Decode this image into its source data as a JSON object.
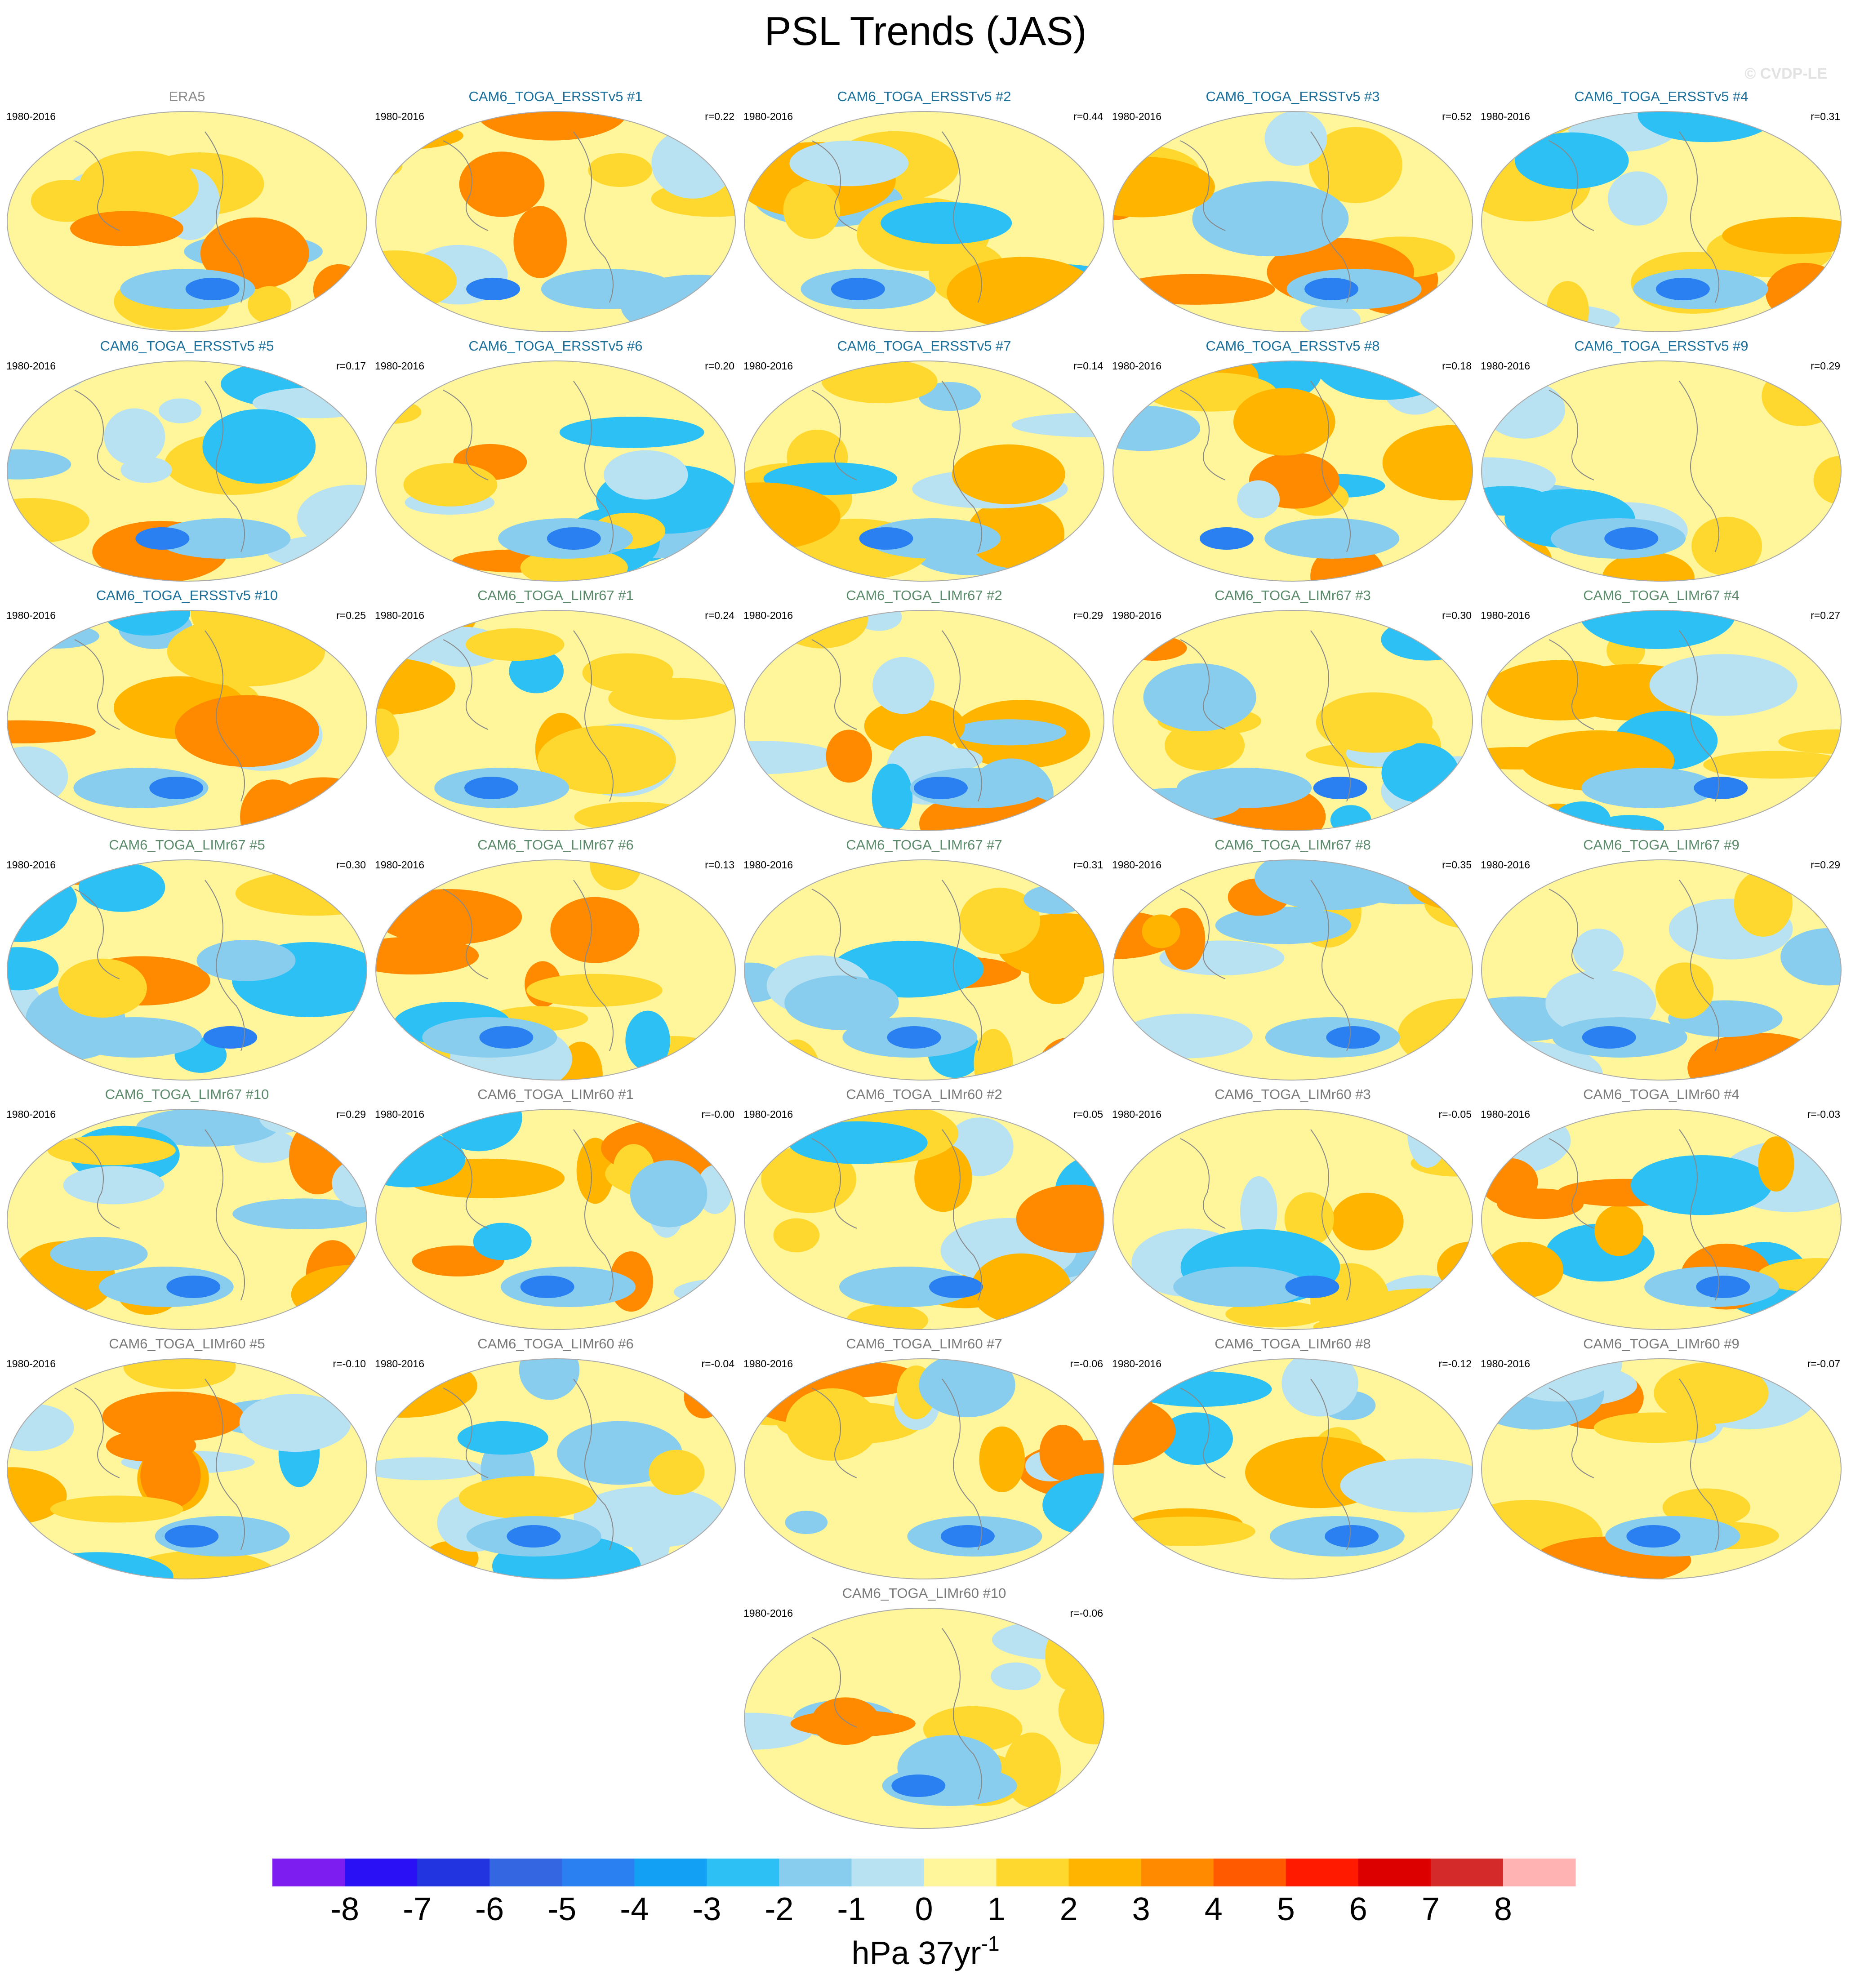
{
  "title": "PSL Trends (JAS)",
  "watermark": "© CVDP-LE",
  "panels": [
    {
      "title": "ERA5",
      "period": "1980-2016",
      "color": "#8a8a8a"
    },
    {
      "title": "CAM6_TOGA_ERSSTv5 #1",
      "period": "1980-2016",
      "r": "r=0.22",
      "color": "#1b6f9b"
    },
    {
      "title": "CAM6_TOGA_ERSSTv5 #2",
      "period": "1980-2016",
      "r": "r=0.44",
      "color": "#1b6f9b"
    },
    {
      "title": "CAM6_TOGA_ERSSTv5 #3",
      "period": "1980-2016",
      "r": "r=0.52",
      "color": "#1b6f9b"
    },
    {
      "title": "CAM6_TOGA_ERSSTv5 #4",
      "period": "1980-2016",
      "r": "r=0.31",
      "color": "#1b6f9b"
    },
    {
      "title": "CAM6_TOGA_ERSSTv5 #5",
      "period": "1980-2016",
      "r": "r=0.17",
      "color": "#1b6f9b"
    },
    {
      "title": "CAM6_TOGA_ERSSTv5 #6",
      "period": "1980-2016",
      "r": "r=0.20",
      "color": "#1b6f9b"
    },
    {
      "title": "CAM6_TOGA_ERSSTv5 #7",
      "period": "1980-2016",
      "r": "r=0.14",
      "color": "#1b6f9b"
    },
    {
      "title": "CAM6_TOGA_ERSSTv5 #8",
      "period": "1980-2016",
      "r": "r=0.18",
      "color": "#1b6f9b"
    },
    {
      "title": "CAM6_TOGA_ERSSTv5 #9",
      "period": "1980-2016",
      "r": "r=0.29",
      "color": "#1b6f9b"
    },
    {
      "title": "CAM6_TOGA_ERSSTv5 #10",
      "period": "1980-2016",
      "r": "r=0.25",
      "color": "#1b6f9b"
    },
    {
      "title": "CAM6_TOGA_LIMr67 #1",
      "period": "1980-2016",
      "r": "r=0.24",
      "color": "#5b8a6b"
    },
    {
      "title": "CAM6_TOGA_LIMr67 #2",
      "period": "1980-2016",
      "r": "r=0.29",
      "color": "#5b8a6b"
    },
    {
      "title": "CAM6_TOGA_LIMr67 #3",
      "period": "1980-2016",
      "r": "r=0.30",
      "color": "#5b8a6b"
    },
    {
      "title": "CAM6_TOGA_LIMr67 #4",
      "period": "1980-2016",
      "r": "r=0.27",
      "color": "#5b8a6b"
    },
    {
      "title": "CAM6_TOGA_LIMr67 #5",
      "period": "1980-2016",
      "r": "r=0.30",
      "color": "#5b8a6b"
    },
    {
      "title": "CAM6_TOGA_LIMr67 #6",
      "period": "1980-2016",
      "r": "r=0.13",
      "color": "#5b8a6b"
    },
    {
      "title": "CAM6_TOGA_LIMr67 #7",
      "period": "1980-2016",
      "r": "r=0.31",
      "color": "#5b8a6b"
    },
    {
      "title": "CAM6_TOGA_LIMr67 #8",
      "period": "1980-2016",
      "r": "r=0.35",
      "color": "#5b8a6b"
    },
    {
      "title": "CAM6_TOGA_LIMr67 #9",
      "period": "1980-2016",
      "r": "r=0.29",
      "color": "#5b8a6b"
    },
    {
      "title": "CAM6_TOGA_LIMr67 #10",
      "period": "1980-2016",
      "r": "r=0.29",
      "color": "#5b8a6b"
    },
    {
      "title": "CAM6_TOGA_LIMr60 #1",
      "period": "1980-2016",
      "r": "r=-0.00",
      "color": "#7a7a7a"
    },
    {
      "title": "CAM6_TOGA_LIMr60 #2",
      "period": "1980-2016",
      "r": "r=0.05",
      "color": "#7a7a7a"
    },
    {
      "title": "CAM6_TOGA_LIMr60 #3",
      "period": "1980-2016",
      "r": "r=-0.05",
      "color": "#7a7a7a"
    },
    {
      "title": "CAM6_TOGA_LIMr60 #4",
      "period": "1980-2016",
      "r": "r=-0.03",
      "color": "#7a7a7a"
    },
    {
      "title": "CAM6_TOGA_LIMr60 #5",
      "period": "1980-2016",
      "r": "r=-0.10",
      "color": "#7a7a7a"
    },
    {
      "title": "CAM6_TOGA_LIMr60 #6",
      "period": "1980-2016",
      "r": "r=-0.04",
      "color": "#7a7a7a"
    },
    {
      "title": "CAM6_TOGA_LIMr60 #7",
      "period": "1980-2016",
      "r": "r=-0.06",
      "color": "#7a7a7a"
    },
    {
      "title": "CAM6_TOGA_LIMr60 #8",
      "period": "1980-2016",
      "r": "r=-0.12",
      "color": "#7a7a7a"
    },
    {
      "title": "CAM6_TOGA_LIMr60 #9",
      "period": "1980-2016",
      "r": "r=-0.07",
      "color": "#7a7a7a"
    },
    {
      "title": "CAM6_TOGA_LIMr60 #10",
      "period": "1980-2016",
      "r": "r=-0.06",
      "color": "#7a7a7a"
    }
  ],
  "colorbar": {
    "colors": [
      "#7e1df0",
      "#2a10f5",
      "#2233e0",
      "#3366e0",
      "#2a80f0",
      "#12a0f5",
      "#2cc0f5",
      "#88cdee",
      "#b8e2f2",
      "#fff59a",
      "#fed82e",
      "#ffb400",
      "#ff8a00",
      "#ff5a00",
      "#ff1a00",
      "#dc0000",
      "#d42a2a",
      "#ffb3b3"
    ],
    "ticks": [
      -8,
      -7,
      -6,
      -5,
      -4,
      -3,
      -2,
      -1,
      0,
      1,
      2,
      3,
      4,
      5,
      6,
      7,
      8
    ],
    "unit": "hPa 37yr",
    "unit_superscript": "-1"
  }
}
